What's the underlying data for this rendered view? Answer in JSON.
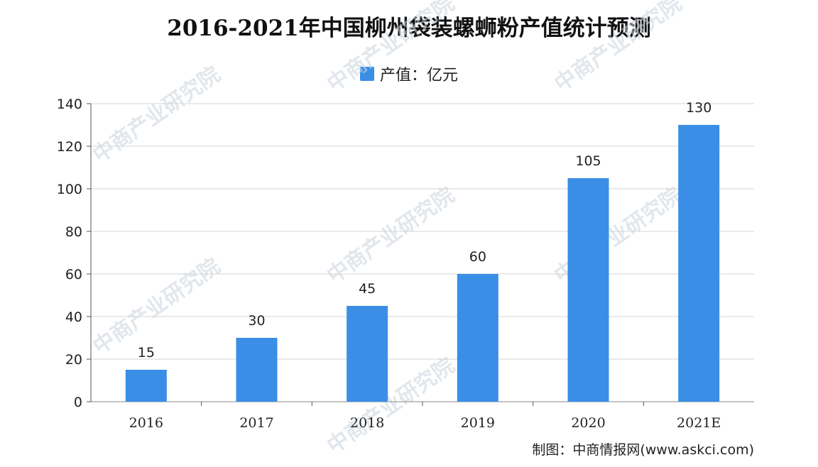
{
  "chart_data": {
    "type": "bar",
    "title": "2016-2021年中国柳州袋装螺蛳粉产值统计预测",
    "legend": "产值：亿元",
    "categories": [
      "2016",
      "2017",
      "2018",
      "2019",
      "2020",
      "2021E"
    ],
    "series": [
      {
        "name": "产值：亿元",
        "values": [
          15,
          30,
          45,
          60,
          105,
          130
        ],
        "color": "#3a8ee6"
      }
    ],
    "ylim": [
      0,
      140
    ],
    "yticks": [
      0,
      20,
      40,
      60,
      80,
      100,
      120,
      140
    ],
    "grid": true,
    "legend_position": "top-center"
  },
  "source": "制图：中商情报网(www.askci.com)",
  "watermark": "中商产业研究院"
}
